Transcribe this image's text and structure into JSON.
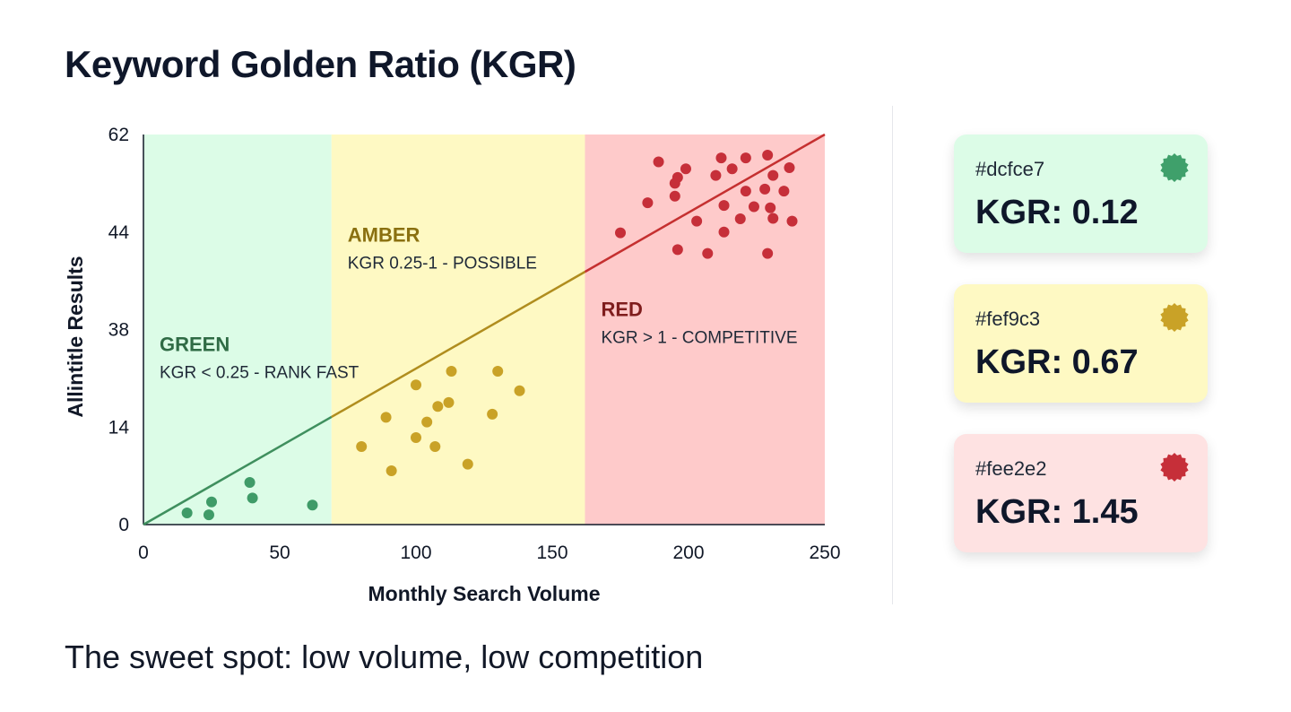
{
  "page": {
    "title": "Keyword Golden Ratio (KGR)",
    "subtitle": "The sweet spot: low volume, low competition"
  },
  "chart_data": {
    "type": "scatter",
    "title": "Keyword Golden Ratio (KGR)",
    "xlabel": "Monthly Search Volume",
    "ylabel": "Allintitle Results",
    "xlim": [
      0,
      250
    ],
    "x_ticks": [
      0,
      50,
      100,
      150,
      200,
      250
    ],
    "y_tick_labels": [
      "0",
      "14",
      "38",
      "44",
      "62"
    ],
    "y_tick_fraction": [
      0,
      0.25,
      0.5,
      0.75,
      1.0
    ],
    "grid": false,
    "zones": [
      {
        "name": "GREEN",
        "desc": "KGR < 0.25 - RANK FAST",
        "x_from": 0,
        "x_to": 69,
        "fill": "#dcfce7",
        "label_color": "#2f6b45"
      },
      {
        "name": "AMBER",
        "desc": "KGR 0.25-1 - POSSIBLE",
        "x_from": 69,
        "x_to": 162,
        "fill": "#fef9c3",
        "label_color": "#8a7010"
      },
      {
        "name": "RED",
        "desc": "KGR > 1 - COMPETITIVE",
        "x_from": 162,
        "x_to": 250,
        "fill": "#fecaca",
        "label_color": "#7f1d1d"
      }
    ],
    "trend_line": {
      "from": [
        0,
        0
      ],
      "to": [
        250,
        1.0
      ],
      "colors": [
        "#3f8f5e",
        "#b08d1e",
        "#c53030"
      ]
    },
    "series": [
      {
        "zone": "GREEN",
        "color": "#3f9b68",
        "points": [
          [
            16,
            0.03
          ],
          [
            24,
            0.025
          ],
          [
            25,
            0.058
          ],
          [
            39,
            0.108
          ],
          [
            40,
            0.068
          ],
          [
            62,
            0.05
          ]
        ]
      },
      {
        "zone": "AMBER",
        "color": "#c9a227",
        "points": [
          [
            80,
            0.2
          ],
          [
            91,
            0.138
          ],
          [
            89,
            0.275
          ],
          [
            100,
            0.223
          ],
          [
            100,
            0.358
          ],
          [
            104,
            0.263
          ],
          [
            107,
            0.2
          ],
          [
            108,
            0.303
          ],
          [
            112,
            0.313
          ],
          [
            113,
            0.393
          ],
          [
            119,
            0.155
          ],
          [
            128,
            0.283
          ],
          [
            130,
            0.393
          ],
          [
            138,
            0.343
          ]
        ]
      },
      {
        "zone": "RED",
        "color": "#c62f39",
        "points": [
          [
            175,
            0.748
          ],
          [
            185,
            0.825
          ],
          [
            189,
            0.93
          ],
          [
            195,
            0.875
          ],
          [
            196,
            0.89
          ],
          [
            195,
            0.842
          ],
          [
            199,
            0.912
          ],
          [
            203,
            0.778
          ],
          [
            196,
            0.705
          ],
          [
            207,
            0.695
          ],
          [
            210,
            0.895
          ],
          [
            212,
            0.94
          ],
          [
            213,
            0.818
          ],
          [
            213,
            0.75
          ],
          [
            216,
            0.912
          ],
          [
            219,
            0.784
          ],
          [
            221,
            0.94
          ],
          [
            221,
            0.855
          ],
          [
            224,
            0.815
          ],
          [
            228,
            0.86
          ],
          [
            229,
            0.947
          ],
          [
            231,
            0.895
          ],
          [
            230,
            0.812
          ],
          [
            231,
            0.785
          ],
          [
            229,
            0.695
          ],
          [
            235,
            0.855
          ],
          [
            237,
            0.915
          ],
          [
            238,
            0.778
          ]
        ]
      }
    ]
  },
  "cards": [
    {
      "hex": "#dcfce7",
      "kgr": "KGR: 0.12",
      "bg": "#dcfce7",
      "badge": "#3fa06b"
    },
    {
      "hex": "#fef9c3",
      "kgr": "KGR: 0.67",
      "bg": "#fef9c3",
      "badge": "#c9a227"
    },
    {
      "hex": "#fee2e2",
      "kgr": "KGR: 1.45",
      "bg": "#fee2e2",
      "badge": "#c62f39"
    }
  ]
}
